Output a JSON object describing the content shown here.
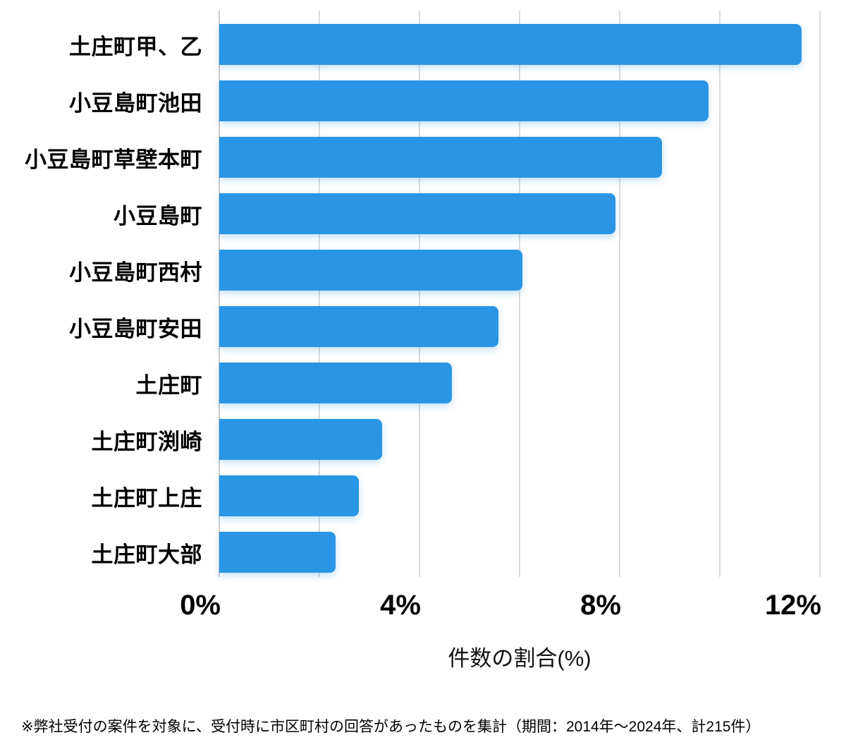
{
  "chart_data": {
    "type": "bar",
    "orientation": "horizontal",
    "title": "",
    "xlabel": "件数の割合(%)",
    "ylabel": "",
    "xlim": [
      0,
      12
    ],
    "grid": true,
    "categories": [
      "土庄町甲、乙",
      "小豆島町池田",
      "小豆島町草壁本町",
      "小豆島町",
      "小豆島町西村",
      "小豆島町安田",
      "土庄町",
      "土庄町渕崎",
      "土庄町上庄",
      "土庄町大部"
    ],
    "values": [
      11.63,
      9.77,
      8.84,
      7.91,
      6.05,
      5.58,
      4.65,
      3.26,
      2.79,
      2.33
    ],
    "unit": "%",
    "xticks_labeled": [
      {
        "value": 0,
        "label": "0%"
      },
      {
        "value": 4,
        "label": "4%"
      },
      {
        "value": 8,
        "label": "8%"
      },
      {
        "value": 12,
        "label": "12%"
      }
    ],
    "gridline_values": [
      0,
      2,
      4,
      6,
      8,
      10,
      12
    ],
    "bar_color": "#2A95E4",
    "gridline_color": "#DCDCDC",
    "axis_line_color": "#C9C9C9"
  },
  "footnote": "※弊社受付の案件を対象に、受付時に市区町村の回答があったものを集計（期間：2014年～2024年、計215件）"
}
